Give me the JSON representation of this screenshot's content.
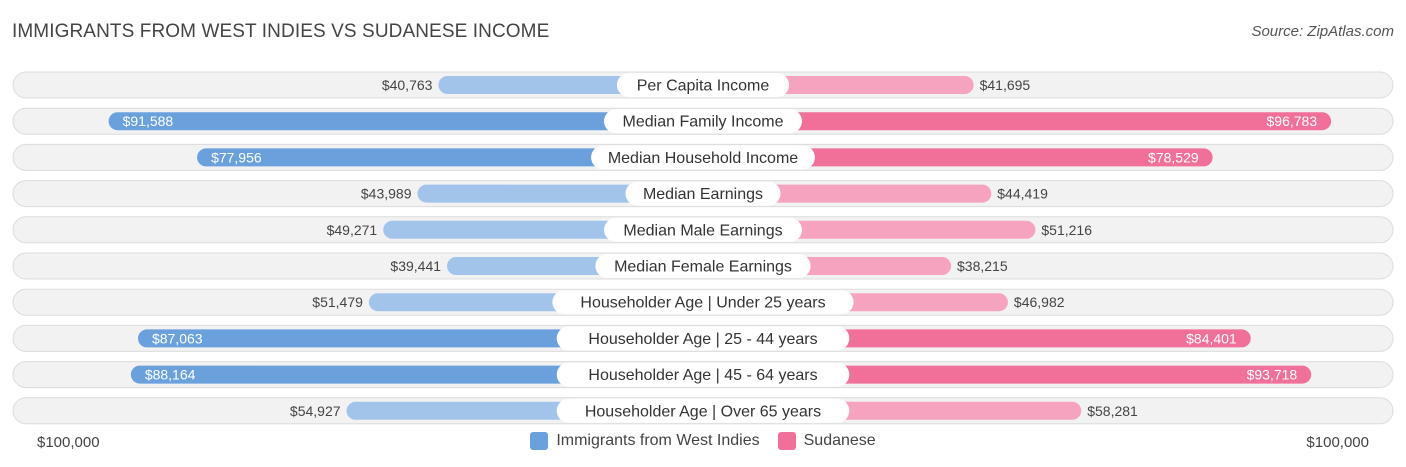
{
  "title": "IMMIGRANTS FROM WEST INDIES VS SUDANESE INCOME",
  "source": "Source: ZipAtlas.com",
  "colors": {
    "left_strong": "#6aa0dc",
    "left_light": "#a3c4ea",
    "right_strong": "#f07099",
    "right_light": "#f5a3be"
  },
  "chart_data": {
    "type": "bar",
    "orientation": "diverging-horizontal",
    "max_value": 100000,
    "axis_left_label": "$100,000",
    "axis_right_label": "$100,000",
    "categories": [
      "Per Capita Income",
      "Median Family Income",
      "Median Household Income",
      "Median Earnings",
      "Median Male Earnings",
      "Median Female Earnings",
      "Householder Age | Under 25 years",
      "Householder Age | 25 - 44 years",
      "Householder Age | 45 - 64 years",
      "Householder Age | Over 65 years"
    ],
    "series": [
      {
        "name": "Immigrants from West Indies",
        "side": "left",
        "values": [
          40763,
          91588,
          77956,
          43989,
          49271,
          39441,
          51479,
          87063,
          88164,
          54927
        ],
        "labels": [
          "$40,763",
          "$91,588",
          "$77,956",
          "$43,989",
          "$49,271",
          "$39,441",
          "$51,479",
          "$87,063",
          "$88,164",
          "$54,927"
        ]
      },
      {
        "name": "Sudanese",
        "side": "right",
        "values": [
          41695,
          96783,
          78529,
          44419,
          51216,
          38215,
          46982,
          84401,
          93718,
          58281
        ],
        "labels": [
          "$41,695",
          "$96,783",
          "$78,529",
          "$44,419",
          "$51,216",
          "$38,215",
          "$46,982",
          "$84,401",
          "$93,718",
          "$58,281"
        ]
      }
    ],
    "legend": [
      "Immigrants from West Indies",
      "Sudanese"
    ],
    "legend_position": "bottom-center"
  }
}
